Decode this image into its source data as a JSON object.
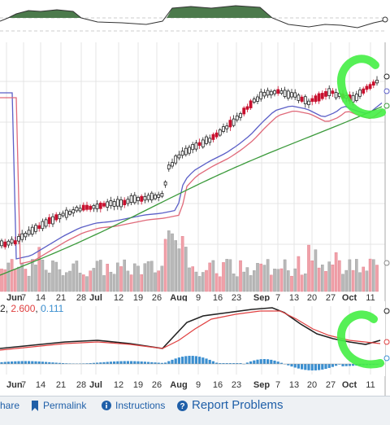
{
  "chart_data": {
    "type": "candlestick",
    "x_tick_labels": [
      "Jun",
      "7",
      "14",
      "21",
      "28",
      "Jul",
      "12",
      "19",
      "26",
      "Aug",
      "9",
      "16",
      "23",
      "Sep",
      "7",
      "13",
      "20",
      "27",
      "Oct",
      "11"
    ],
    "bold_tick_labels": [
      "Jun",
      "Jul",
      "Aug",
      "Sep",
      "Oct"
    ],
    "price_series": [
      {
        "name": "candles"
      },
      {
        "name": "ma-blue",
        "color": "#5b5fc7"
      },
      {
        "name": "ma-red",
        "color": "#e06a7a"
      },
      {
        "name": "ma-green",
        "color": "#3b9a3b"
      }
    ],
    "macd_values": {
      "v1": "2",
      "v2": "2.600",
      "v3": "0.111"
    },
    "colors": {
      "up": "#222222",
      "down": "#c8102e",
      "highlight": "#44ee44",
      "macd": "#222222",
      "signal": "#e04040",
      "hist": "#3b8fd0",
      "volume_up": "#b8b8b8",
      "volume_down": "#f0a0a8"
    }
  },
  "footer": {
    "share": "hare",
    "permalink": "Permalink",
    "instructions": "Instructions",
    "report": "Report Problems"
  }
}
